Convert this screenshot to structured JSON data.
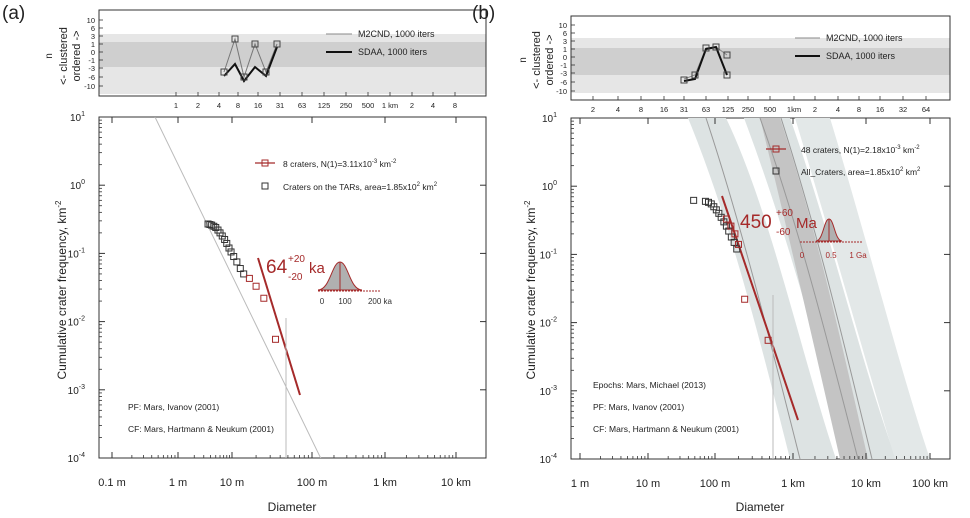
{
  "panels": [
    {
      "panel_label": "(a)",
      "top_plot": {
        "ylabel_main": "n",
        "ylabel_sub": "σ",
        "ylabel_clustered": "<- clustered",
        "ylabel_ordered": "ordered ->",
        "yticks": [
          "10",
          "6",
          "3",
          "1",
          "0",
          "-1",
          "-3",
          "-6",
          "-10"
        ],
        "xticks": [
          "1",
          "2",
          "4",
          "8",
          "16",
          "31",
          "63",
          "125",
          "250",
          "500",
          "1 km",
          "2",
          "4",
          "8"
        ],
        "legend": [
          "M2CND, 1000 iters",
          "SDAA, 1000 iters"
        ]
      },
      "main_plot": {
        "ylabel": "Cumulative crater frequency, km",
        "ylabel_sup": "-2",
        "xlabel": "Diameter",
        "xticks": [
          "0.1 m",
          "1 m",
          "10 m",
          "100 m",
          "1 km",
          "10 km"
        ],
        "yticks": [
          "10",
          "10",
          "10",
          "10",
          "10",
          "10"
        ],
        "ytick_exps": [
          "1",
          "0",
          "-1",
          "-2",
          "-3",
          "-4"
        ],
        "legend": [
          {
            "text": "8 craters, N(1)=3.11x10",
            "sup": "-3",
            "tail": " km",
            "tail_sup": "-2"
          },
          {
            "text": "Craters on the TARs, area=1.85x10",
            "sup": "2",
            "tail": " km",
            "tail_sup": "2"
          }
        ],
        "age": {
          "value": "64",
          "plus": "+20",
          "minus": "-20",
          "unit": "ka"
        },
        "age_axis": [
          "0",
          "100",
          "200 ka"
        ],
        "notes": [
          "PF: Mars, Ivanov (2001)",
          "CF: Mars, Hartmann & Neukum (2001)"
        ]
      }
    },
    {
      "panel_label": "(b)",
      "top_plot": {
        "ylabel_main": "n",
        "ylabel_sub": "σ",
        "ylabel_clustered": "<- clustered",
        "ylabel_ordered": "ordered ->",
        "yticks": [
          "10",
          "6",
          "3",
          "1",
          "0",
          "-1",
          "-3",
          "-6",
          "-10"
        ],
        "xticks": [
          "2",
          "4",
          "8",
          "16",
          "31",
          "63",
          "125",
          "250",
          "500",
          "1km",
          "2",
          "4",
          "8",
          "16",
          "32",
          "64"
        ],
        "legend": [
          "M2CND, 1000 iters",
          "SDAA, 1000 iters"
        ]
      },
      "main_plot": {
        "ylabel": "Cumulative crater frequency, km",
        "ylabel_sup": "-2",
        "xlabel": "Diameter",
        "xticks": [
          "1 m",
          "10 m",
          "100 m",
          "1 km",
          "10 km",
          "100 km"
        ],
        "yticks": [
          "10",
          "10",
          "10",
          "10",
          "10",
          "10"
        ],
        "ytick_exps": [
          "1",
          "0",
          "-1",
          "-2",
          "-3",
          "-4"
        ],
        "legend": [
          {
            "text": "48 craters, N(1)=2.18x10",
            "sup": "-3",
            "tail": " km",
            "tail_sup": "-2"
          },
          {
            "text": "All_Craters, area=1.85x10",
            "sup": "2",
            "tail": " km",
            "tail_sup": "2"
          }
        ],
        "age": {
          "value": "450",
          "plus": "+60",
          "minus": "-60",
          "unit": "Ma"
        },
        "age_axis": [
          "0",
          "0.5",
          "1 Ga"
        ],
        "notes": [
          "Epochs: Mars, Michael (2013)",
          "PF: Mars, Ivanov (2001)",
          "CF: Mars, Hartmann & Neukum (2001)"
        ]
      }
    }
  ],
  "colors": {
    "model": "#a52a2a",
    "data": "#222222",
    "band_dark": "#c8c8c8",
    "band_light": "#e6e6e6",
    "iso_dark": "#b8b8b8",
    "iso_light": "#dde3e3"
  },
  "chart_data": [
    {
      "type": "scatter",
      "panel": "(a)",
      "xscale": "log",
      "yscale": "log",
      "xlabel": "Diameter",
      "ylabel": "Cumulative crater frequency, km^-2",
      "xlim_m": [
        0.1,
        30000
      ],
      "ylim": [
        0.0001,
        10
      ],
      "series": [
        {
          "name": "Craters on the TARs, area=1.85x10^2 km^2",
          "x_m": [
            3.6,
            3.9,
            4.2,
            4.6,
            5.0,
            5.5,
            6.0,
            6.6,
            7.3,
            8.0,
            8.8,
            9.6,
            10.5,
            11.5,
            12.7,
            14.0
          ],
          "y": [
            0.27,
            0.265,
            0.26,
            0.25,
            0.24,
            0.22,
            0.2,
            0.18,
            0.16,
            0.14,
            0.12,
            0.105,
            0.09,
            0.075,
            0.06,
            0.05
          ]
        },
        {
          "name": "8 craters, N(1)=3.11x10^-3 km^-2",
          "x_m": [
            16.5,
            20.0,
            25.0,
            35.0
          ],
          "y": [
            0.043,
            0.033,
            0.022,
            0.0055
          ]
        }
      ],
      "fit_age": "64 ka (+20/-20)"
    },
    {
      "type": "scatter",
      "panel": "(b)",
      "xscale": "log",
      "yscale": "log",
      "xlabel": "Diameter",
      "ylabel": "Cumulative crater frequency, km^-2",
      "xlim_m": [
        0.5,
        200000
      ],
      "ylim": [
        0.0001,
        10
      ],
      "series": [
        {
          "name": "All_Craters, area=1.85x10^2 km^2",
          "x_m": [
            48,
            72,
            80,
            88,
            96,
            104,
            112,
            120,
            130,
            140,
            150,
            162,
            176,
            190
          ],
          "y": [
            0.62,
            0.6,
            0.58,
            0.55,
            0.5,
            0.45,
            0.4,
            0.35,
            0.3,
            0.26,
            0.22,
            0.18,
            0.15,
            0.12
          ]
        },
        {
          "name": "48 craters, N(1)=2.18x10^-3 km^-2",
          "x_m": [
            140,
            160,
            180,
            200,
            240,
            480
          ],
          "y": [
            0.33,
            0.26,
            0.2,
            0.14,
            0.022,
            0.0055
          ]
        }
      ],
      "fit_age": "450 Ma (+60/-60)"
    }
  ]
}
